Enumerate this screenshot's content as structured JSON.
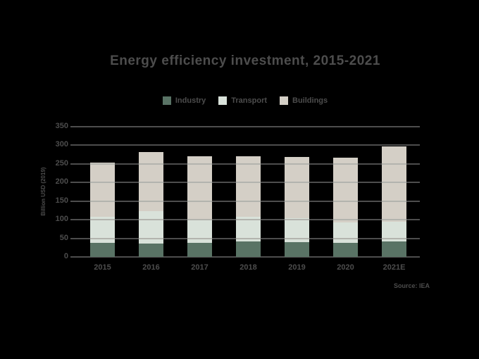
{
  "page": {
    "background_color": "#000000",
    "text_color": "#4d4d4d",
    "grid_color": "#4d4d4d",
    "grid_on_bar_color": "#b3b4ae"
  },
  "chart_data": {
    "type": "bar",
    "stacked": true,
    "title": "Energy efficiency investment, 2015-2021",
    "ylabel": "Billion USD (2019)",
    "source": "Source: IEA",
    "categories": [
      "2015",
      "2016",
      "2017",
      "2018",
      "2019",
      "2020",
      "2021E"
    ],
    "series": [
      {
        "name": "Industry",
        "color": "#597365",
        "values": [
          37,
          35,
          38,
          41,
          39,
          37,
          41
        ]
      },
      {
        "name": "Transport",
        "color": "#d9e2da",
        "values": [
          70,
          88,
          65,
          67,
          65,
          55,
          54
        ]
      },
      {
        "name": "Buildings",
        "color": "#d4cfc6",
        "values": [
          146,
          159,
          167,
          163,
          164,
          174,
          202
        ]
      }
    ],
    "totals": [
      253,
      282,
      270,
      271,
      268,
      266,
      297
    ],
    "ylim": [
      0,
      350
    ],
    "ytick_step": 50,
    "ytick_labels": [
      "0",
      "50",
      "100",
      "150",
      "200",
      "250",
      "300",
      "350"
    ],
    "grid": true,
    "legend_position": "top"
  }
}
